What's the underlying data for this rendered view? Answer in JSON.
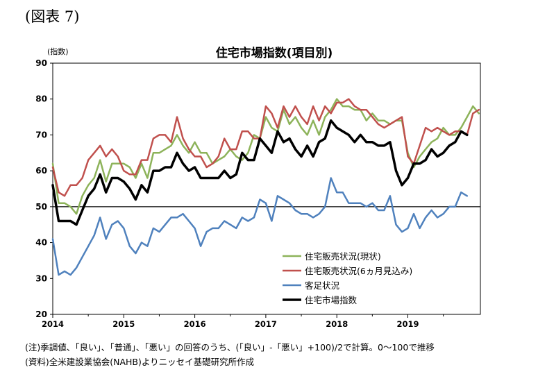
{
  "figure_label": "(図表 7)",
  "notes": {
    "note": "(注)季調値、「良い」、「普通」、「悪い」の回答のうち、(「良い」-「悪い」+100)/2で計算。0～100で推移",
    "source": "(資料)全米建設業協会(NAHB)よりニッセイ基礎研究所作成"
  },
  "chart_data": {
    "type": "line",
    "title": "住宅市場指数(項目別)",
    "ylabel": "(指数)",
    "xlabel": "",
    "ylim": [
      20,
      90
    ],
    "yticks": [
      20,
      30,
      40,
      50,
      60,
      70,
      80,
      90
    ],
    "x_start": "2014-01",
    "x_ticks": [
      "2014",
      "2015",
      "2016",
      "2017",
      "2018",
      "2019"
    ],
    "reference_line": 50,
    "grid": false,
    "legend_position": "inside-bottom-right",
    "series": [
      {
        "name": "住宅販売状況(現状)",
        "color": "#8db35a",
        "width": 2.5,
        "values": [
          62,
          51,
          51,
          50,
          48,
          53,
          56,
          58,
          63,
          57,
          62,
          62,
          62,
          61,
          58,
          62,
          58,
          65,
          65,
          66,
          67,
          70,
          67,
          65,
          68,
          65,
          65,
          62,
          63,
          64,
          66,
          64,
          63,
          65,
          70,
          69,
          75,
          72,
          71,
          77,
          73,
          75,
          72,
          70,
          74,
          70,
          75,
          77,
          80,
          78,
          78,
          77,
          77,
          74,
          76,
          74,
          74,
          73,
          74,
          74,
          65,
          61,
          64,
          66,
          68,
          69,
          72,
          70,
          70,
          72,
          75,
          78,
          76
        ]
      },
      {
        "name": "住宅販売状況(6ヵ月見込み)",
        "color": "#c0504d",
        "width": 2.5,
        "values": [
          61,
          54,
          53,
          56,
          56,
          58,
          63,
          65,
          67,
          64,
          66,
          64,
          60,
          59,
          59,
          63,
          63,
          69,
          70,
          70,
          68,
          75,
          69,
          66,
          64,
          64,
          61,
          62,
          64,
          69,
          66,
          66,
          71,
          71,
          69,
          69,
          78,
          76,
          72,
          78,
          75,
          78,
          75,
          73,
          78,
          74,
          78,
          76,
          79,
          79,
          80,
          78,
          77,
          77,
          75,
          73,
          72,
          73,
          74,
          75,
          64,
          62,
          67,
          72,
          71,
          72,
          71,
          70,
          71,
          71,
          70,
          76,
          77
        ]
      },
      {
        "name": "客足状況",
        "color": "#4f81bd",
        "width": 2.5,
        "values": [
          41,
          31,
          32,
          31,
          33,
          36,
          39,
          42,
          47,
          41,
          45,
          46,
          44,
          39,
          37,
          40,
          39,
          44,
          43,
          45,
          47,
          47,
          48,
          46,
          44,
          39,
          43,
          44,
          44,
          46,
          45,
          44,
          47,
          46,
          47,
          52,
          51,
          46,
          53,
          52,
          51,
          49,
          48,
          48,
          47,
          48,
          50,
          58,
          54,
          54,
          51,
          51,
          51,
          50,
          51,
          49,
          49,
          53,
          45,
          43,
          44,
          48,
          44,
          47,
          49,
          47,
          48,
          50,
          50,
          54,
          53
        ]
      },
      {
        "name": "住宅市場指数",
        "color": "#000000",
        "width": 3.5,
        "values": [
          56,
          46,
          46,
          46,
          45,
          49,
          53,
          55,
          59,
          54,
          58,
          58,
          57,
          55,
          52,
          56,
          54,
          60,
          60,
          61,
          61,
          65,
          62,
          60,
          61,
          58,
          58,
          58,
          58,
          60,
          58,
          59,
          65,
          63,
          63,
          69,
          67,
          65,
          71,
          68,
          69,
          66,
          64,
          67,
          64,
          68,
          69,
          74,
          72,
          71,
          70,
          68,
          70,
          68,
          68,
          67,
          67,
          68,
          60,
          56,
          58,
          62,
          62,
          63,
          66,
          64,
          65,
          67,
          68,
          71,
          70
        ]
      }
    ]
  }
}
